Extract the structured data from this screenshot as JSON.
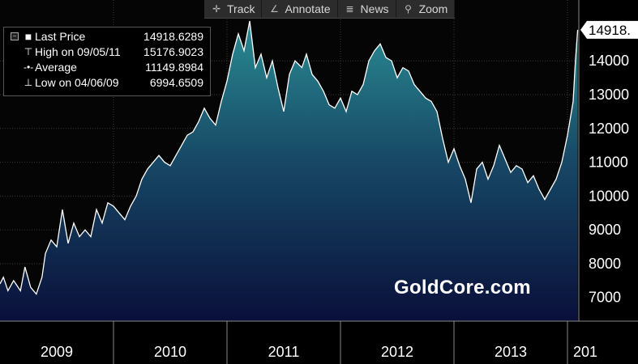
{
  "toolbar": {
    "track": {
      "label": "Track",
      "icon": "crosshair-icon"
    },
    "annotate": {
      "label": "Annotate",
      "icon": "pencil-icon"
    },
    "news": {
      "label": "News",
      "icon": "news-icon"
    },
    "zoom": {
      "label": "Zoom",
      "icon": "magnifier-icon"
    }
  },
  "legend": {
    "last_price": {
      "label": "Last Price",
      "value": "14918.6289"
    },
    "high": {
      "label": "High on 09/05/11",
      "value": "15176.9023"
    },
    "average": {
      "label": "Average",
      "value": "11149.8984"
    },
    "low": {
      "label": "Low on 04/06/09",
      "value": "6994.6509"
    }
  },
  "last_price_tag": "14918.",
  "watermark": "GoldCore.com",
  "colors": {
    "background": "#000000",
    "area_top": "#2a8c94",
    "area_bottom": "#0a0f3a",
    "line": "#ffffff",
    "grid": "#3a3a3a"
  },
  "chart_data": {
    "type": "area",
    "title": "",
    "xlabel": "",
    "ylabel": "",
    "ylim": [
      6300,
      15800
    ],
    "yticks": [
      7000,
      8000,
      9000,
      10000,
      11000,
      12000,
      13000,
      14000
    ],
    "ytick_labels": [
      "7000",
      "8000",
      "9000",
      "10000",
      "11000",
      "12000",
      "13000",
      "14000"
    ],
    "x_range": [
      2009.0,
      2014.1
    ],
    "year_labels": [
      "2009",
      "2010",
      "2011",
      "2012",
      "2013",
      "201"
    ],
    "grid": true,
    "legend_position": "top-left",
    "series": [
      {
        "x": [
          2009.0,
          2009.03,
          2009.07,
          2009.12,
          2009.18,
          2009.22,
          2009.27,
          2009.32,
          2009.37,
          2009.4,
          2009.45,
          2009.5,
          2009.55,
          2009.6,
          2009.65,
          2009.7,
          2009.75,
          2009.8,
          2009.85,
          2009.9,
          2009.95,
          2010.0,
          2010.05,
          2010.1,
          2010.15,
          2010.2,
          2010.25,
          2010.3,
          2010.35,
          2010.4,
          2010.45,
          2010.5,
          2010.55,
          2010.6,
          2010.65,
          2010.7,
          2010.75,
          2010.8,
          2010.85,
          2010.9,
          2010.95,
          2011.0,
          2011.05,
          2011.1,
          2011.15,
          2011.2,
          2011.25,
          2011.3,
          2011.35,
          2011.4,
          2011.45,
          2011.5,
          2011.55,
          2011.6,
          2011.66,
          2011.7,
          2011.75,
          2011.8,
          2011.85,
          2011.9,
          2011.95,
          2012.0,
          2012.05,
          2012.1,
          2012.15,
          2012.2,
          2012.25,
          2012.3,
          2012.35,
          2012.4,
          2012.45,
          2012.5,
          2012.55,
          2012.6,
          2012.65,
          2012.7,
          2012.75,
          2012.8,
          2012.85,
          2012.9,
          2012.95,
          2013.0,
          2013.05,
          2013.1,
          2013.15,
          2013.2,
          2013.25,
          2013.3,
          2013.35,
          2013.4,
          2013.45,
          2013.5,
          2013.55,
          2013.6,
          2013.65,
          2013.7,
          2013.75,
          2013.8,
          2013.85,
          2013.9,
          2013.95,
          2014.0,
          2014.05,
          2014.07,
          2014.09
        ],
        "values": [
          7400,
          7600,
          7200,
          7500,
          7200,
          7900,
          7300,
          7100,
          7600,
          8300,
          8700,
          8500,
          9600,
          8600,
          9200,
          8800,
          9000,
          8800,
          9600,
          9200,
          9800,
          9700,
          9500,
          9300,
          9700,
          10000,
          10500,
          10800,
          11000,
          11200,
          11000,
          10900,
          11200,
          11500,
          11800,
          11900,
          12200,
          12600,
          12300,
          12100,
          12800,
          13400,
          14200,
          14800,
          14300,
          15177,
          13800,
          14200,
          13500,
          14000,
          13200,
          12500,
          13600,
          14000,
          13800,
          14200,
          13600,
          13400,
          13100,
          12700,
          12600,
          12900,
          12500,
          13100,
          13000,
          13300,
          14000,
          14300,
          14500,
          14100,
          14000,
          13500,
          13800,
          13700,
          13300,
          13100,
          12900,
          12800,
          12500,
          11700,
          11000,
          11400,
          10900,
          10500,
          9800,
          10800,
          11000,
          10500,
          10900,
          11500,
          11100,
          10700,
          10900,
          10800,
          10400,
          10600,
          10200,
          9900,
          10200,
          10500,
          11000,
          11800,
          12800,
          14000,
          14919
        ]
      }
    ]
  }
}
